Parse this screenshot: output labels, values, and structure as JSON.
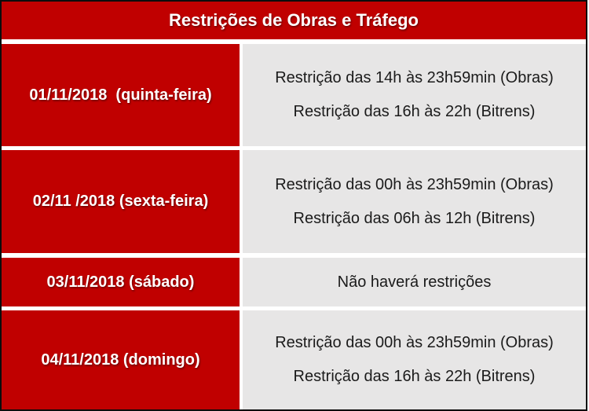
{
  "title": "Restrições de Obras e Tráfego",
  "colors": {
    "header_red": "#C00000",
    "cell_gray": "#E7E6E6",
    "border_black": "#0C0C0C",
    "header_text": "#FFFFFF",
    "body_text": "#1B1B1B"
  },
  "rows": [
    {
      "date": "01/11/2018  (quinta-feira)",
      "restrictions": [
        "Restrição das 14h às 23h59min (Obras)",
        "Restrição das 16h às 22h (Bitrens)"
      ]
    },
    {
      "date": "02/11 /2018 (sexta-feira)",
      "restrictions": [
        "Restrição das 00h às 23h59min (Obras)",
        "Restrição das 06h às 12h (Bitrens)"
      ]
    },
    {
      "date": "03/11/2018 (sábado)",
      "restrictions": [
        "Não haverá restrições"
      ]
    },
    {
      "date": "04/11/2018 (domingo)",
      "restrictions": [
        "Restrição das 00h às 23h59min (Obras)",
        "Restrição das 16h às 22h (Bitrens)"
      ]
    }
  ]
}
